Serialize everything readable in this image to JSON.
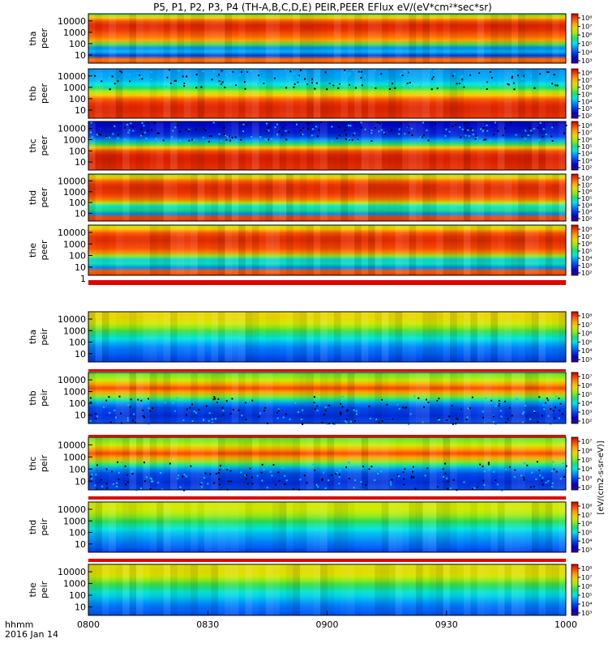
{
  "chart_data": {
    "type": "heatmap",
    "title": "P5, P1, P2, P3, P4 (TH-A,B,C,D,E) PEIR,PEER EFlux eV/(eV*cm²*sec*sr)",
    "x_tick_labels": [
      "0800",
      "0830",
      "0900",
      "0930",
      "1000"
    ],
    "x_range_hhmm": [
      "0800",
      "1000"
    ],
    "x_caption_1": "hhmm",
    "x_caption_2": "2016 Jan 14",
    "y_scale": "log",
    "y_tick_labels": [
      "10000",
      "1000",
      "100",
      "10"
    ],
    "colorbar_unit": "[eV/(cm2-s-sr-eV)]",
    "colorbar_scale": "log",
    "panels": [
      {
        "name": "tha",
        "species": "peer",
        "ylabel": [
          "tha",
          "peer"
        ],
        "y_extra_tick": null,
        "colorbar_ticks": [
          "10⁸",
          "10⁷",
          "10⁶",
          "10⁵",
          "10⁴",
          "10³"
        ],
        "band_levels": [
          0.55,
          0.74,
          0.9,
          0.95,
          0.94,
          0.9,
          0.86,
          0.8,
          0.55,
          0.3,
          0.35,
          0.2,
          0.85,
          0.9
        ]
      },
      {
        "name": "thb",
        "species": "peer",
        "ylabel": [
          "thb",
          "peer"
        ],
        "y_extra_tick": null,
        "colorbar_ticks": [
          "10⁸",
          "10⁷",
          "10⁶",
          "10⁵",
          "10⁴",
          "10³",
          "10²"
        ],
        "band_levels": [
          0.3,
          0.32,
          0.33,
          0.35,
          0.4,
          0.5,
          0.62,
          0.76,
          0.88,
          0.93,
          0.95,
          0.95,
          0.94,
          0.93
        ]
      },
      {
        "name": "thc",
        "species": "peer",
        "ylabel": [
          "thc",
          "peer"
        ],
        "y_extra_tick": null,
        "colorbar_ticks": [
          "10⁸",
          "10⁷",
          "10⁶",
          "10⁵",
          "10⁴",
          "10³",
          "10²"
        ],
        "band_levels": [
          0.12,
          0.13,
          0.15,
          0.16,
          0.2,
          0.32,
          0.5,
          0.75,
          0.9,
          0.95,
          0.96,
          0.95,
          0.94,
          0.93
        ]
      },
      {
        "name": "thd",
        "species": "peer",
        "ylabel": [
          "thd",
          "peer"
        ],
        "y_extra_tick": null,
        "colorbar_ticks": [
          "10⁸",
          "10⁷",
          "10⁶",
          "10⁵",
          "10⁴",
          "10³",
          "10²"
        ],
        "band_levels": [
          0.6,
          0.75,
          0.88,
          0.93,
          0.94,
          0.93,
          0.9,
          0.85,
          0.62,
          0.4,
          0.5,
          0.3,
          0.9,
          0.92
        ]
      },
      {
        "name": "the",
        "species": "peer",
        "ylabel": [
          "the",
          "peer"
        ],
        "y_extra_tick": "1",
        "colorbar_ticks": [
          "10⁸",
          "10⁷",
          "10⁶",
          "10⁵",
          "10⁴",
          "10³",
          "10²"
        ],
        "band_levels": [
          0.62,
          0.76,
          0.88,
          0.93,
          0.94,
          0.92,
          0.9,
          0.84,
          0.6,
          0.38,
          0.45,
          0.3,
          0.88,
          0.92
        ]
      },
      {
        "name": "tha",
        "species": "peir",
        "ylabel": [
          "tha",
          "peir"
        ],
        "y_extra_tick": null,
        "colorbar_ticks": [
          "10⁸",
          "10⁷",
          "10⁶",
          "10⁵",
          "10⁴",
          "10³"
        ],
        "band_levels": [
          0.7,
          0.72,
          0.7,
          0.66,
          0.6,
          0.54,
          0.46,
          0.4,
          0.35,
          0.3,
          0.27,
          0.25,
          0.22,
          0.2
        ]
      },
      {
        "name": "thb",
        "species": "peir",
        "ylabel": [
          "thb",
          "peir"
        ],
        "y_extra_tick": null,
        "colorbar_ticks": [
          "10⁷",
          "10⁶",
          "10⁵",
          "10⁴",
          "10³",
          "10²"
        ],
        "band_levels": [
          0.55,
          0.6,
          0.66,
          0.8,
          0.9,
          0.8,
          0.6,
          0.45,
          0.3,
          0.22,
          0.2,
          0.18,
          0.2,
          0.22
        ]
      },
      {
        "name": "thc",
        "species": "peir",
        "ylabel": [
          "thc",
          "peir"
        ],
        "y_extra_tick": null,
        "colorbar_ticks": [
          "10⁷",
          "10⁶",
          "10⁵",
          "10⁴",
          "10³",
          "10²"
        ],
        "band_levels": [
          0.55,
          0.6,
          0.66,
          0.8,
          0.9,
          0.8,
          0.6,
          0.45,
          0.3,
          0.22,
          0.2,
          0.18,
          0.2,
          0.22
        ]
      },
      {
        "name": "thd",
        "species": "peir",
        "ylabel": [
          "thd",
          "peir"
        ],
        "y_extra_tick": null,
        "colorbar_ticks": [
          "10⁸",
          "10⁷",
          "10⁶",
          "10⁵",
          "10⁴",
          "10³"
        ],
        "band_levels": [
          0.64,
          0.66,
          0.66,
          0.62,
          0.58,
          0.52,
          0.46,
          0.4,
          0.36,
          0.33,
          0.3,
          0.27,
          0.24,
          0.2
        ]
      },
      {
        "name": "the",
        "species": "peir",
        "ylabel": [
          "the",
          "peir"
        ],
        "y_extra_tick": null,
        "colorbar_ticks": [
          "10⁸",
          "10⁷",
          "10⁶",
          "10⁵",
          "10⁴",
          "10³"
        ],
        "band_levels": [
          0.68,
          0.7,
          0.7,
          0.66,
          0.6,
          0.54,
          0.48,
          0.42,
          0.38,
          0.34,
          0.3,
          0.27,
          0.25,
          0.22
        ]
      }
    ]
  }
}
